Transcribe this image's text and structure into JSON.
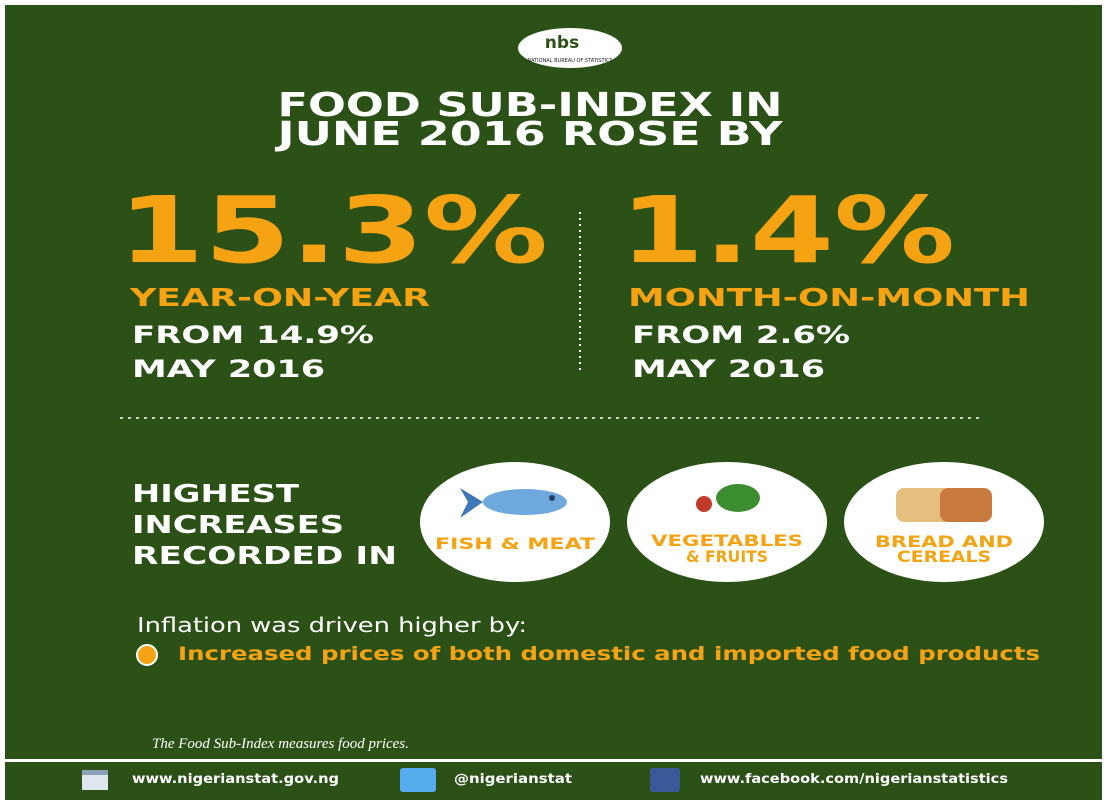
{
  "logo": {
    "text": "nbs",
    "subtitle": "NATIONAL BUREAU OF STATISTICS"
  },
  "headline": [
    "FOOD SUB-INDEX IN",
    "JUNE 2016 ROSE BY"
  ],
  "stats": [
    {
      "value": "15.3%",
      "label": "YEAR-ON-YEAR",
      "from": [
        "FROM 14.9%",
        "MAY 2016"
      ]
    },
    {
      "value": "1.4%",
      "label": "MONTH-ON-MONTH",
      "from": [
        "FROM 2.6%",
        "MAY 2016"
      ]
    }
  ],
  "highest": {
    "title": [
      "HIGHEST",
      "INCREASES",
      "RECORDED IN"
    ],
    "items": [
      {
        "label": [
          "FISH & MEAT"
        ]
      },
      {
        "label": [
          "VEGETABLES",
          "& FRUITS"
        ]
      },
      {
        "label": [
          "BREAD AND",
          "CEREALS"
        ]
      }
    ]
  },
  "drivers": {
    "title": "Inflation was driven higher by:",
    "points": [
      "Increased prices of both domestic and imported food products"
    ]
  },
  "note": "The Food Sub-Index measures food prices.",
  "footer": {
    "website": "www.nigerianstat.gov.ng",
    "twitter": "@nigerianstat",
    "facebook": "www.facebook.com/nigerianstatistics"
  }
}
